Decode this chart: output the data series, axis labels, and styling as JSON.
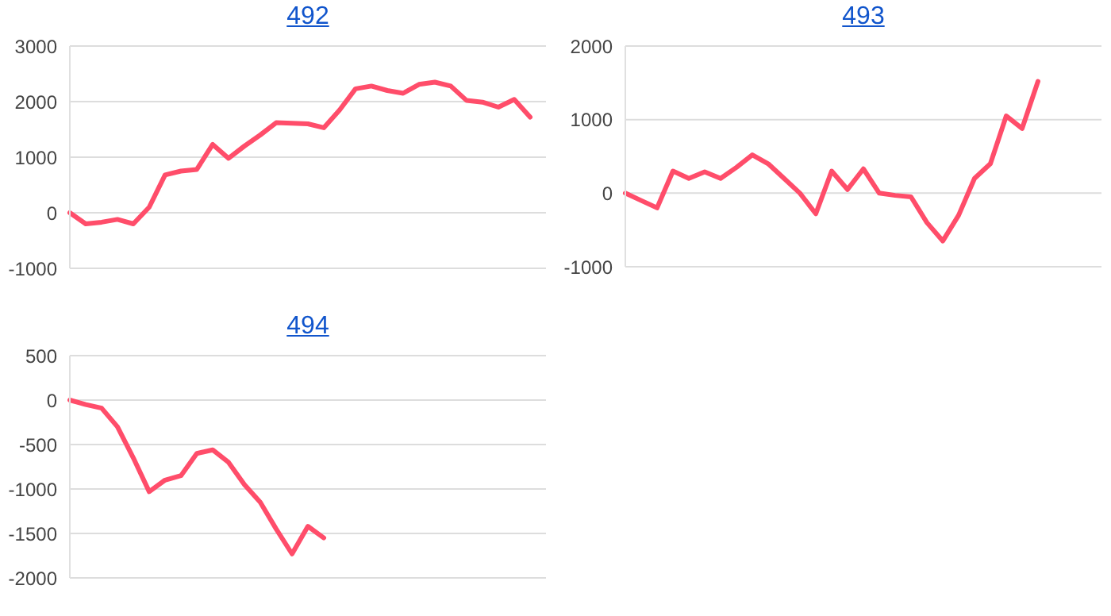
{
  "chart_data": [
    {
      "type": "line",
      "title": "492",
      "categories": [
        null,
        null,
        null,
        null,
        null,
        null,
        null,
        null,
        null,
        null,
        null,
        null,
        null,
        null,
        null,
        null,
        null,
        null,
        null,
        null,
        null,
        null,
        null,
        null,
        null,
        null,
        null,
        null,
        null,
        null,
        null
      ],
      "color": "#ff4d6a",
      "values": [
        0,
        -200,
        -170,
        -120,
        -200,
        100,
        680,
        750,
        780,
        1230,
        980,
        1200,
        1400,
        1620,
        1610,
        1600,
        1530,
        1850,
        2230,
        2280,
        2200,
        2150,
        2310,
        2350,
        2280,
        2020,
        1990,
        1900,
        2040,
        1720,
        null
      ],
      "ylim": [
        -1000,
        3000
      ],
      "yticks": [
        -1000,
        0,
        1000,
        2000,
        3000
      ],
      "grid": "y",
      "marker": "none",
      "legend": false
    },
    {
      "type": "line",
      "title": "493",
      "categories": [
        null,
        null,
        null,
        null,
        null,
        null,
        null,
        null,
        null,
        null,
        null,
        null,
        null,
        null,
        null,
        null,
        null,
        null,
        null,
        null,
        null,
        null,
        null,
        null,
        null,
        null,
        null,
        null,
        null,
        null,
        null
      ],
      "color": "#ff4d6a",
      "values": [
        0,
        -100,
        -200,
        300,
        200,
        290,
        200,
        350,
        520,
        400,
        200,
        0,
        -280,
        300,
        50,
        330,
        0,
        -30,
        -50,
        -400,
        -650,
        -300,
        200,
        400,
        1050,
        880,
        1520,
        null,
        null,
        null,
        null
      ],
      "ylim": [
        -1000,
        2000
      ],
      "yticks": [
        -1000,
        0,
        1000,
        2000
      ],
      "grid": "y",
      "marker": "none",
      "legend": false
    },
    {
      "type": "line",
      "title": "494",
      "categories": [
        null,
        null,
        null,
        null,
        null,
        null,
        null,
        null,
        null,
        null,
        null,
        null,
        null,
        null,
        null,
        null,
        null,
        null,
        null,
        null,
        null,
        null,
        null,
        null,
        null,
        null,
        null,
        null,
        null,
        null,
        null
      ],
      "color": "#ff4d6a",
      "values": [
        0,
        -50,
        -90,
        -300,
        -650,
        -1030,
        -900,
        -850,
        -600,
        -560,
        -700,
        -950,
        -1150,
        -1450,
        -1730,
        -1420,
        -1550,
        null,
        null,
        null,
        null,
        null,
        null,
        null,
        null,
        null,
        null,
        null,
        null,
        null,
        null
      ],
      "ylim": [
        -2000,
        500
      ],
      "yticks": [
        -2000,
        -1500,
        -1000,
        -500,
        0,
        500
      ],
      "grid": "y",
      "marker": "none",
      "legend": false
    }
  ]
}
